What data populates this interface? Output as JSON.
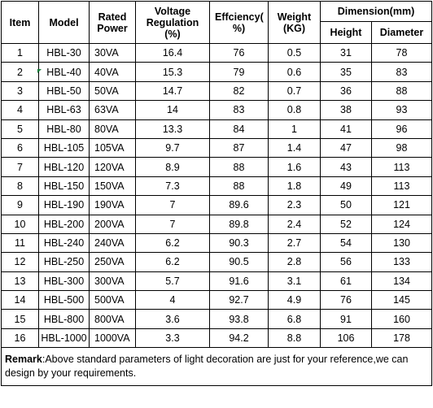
{
  "headers": {
    "item": "Item",
    "model": "Model",
    "rated_power": "Rated Power",
    "voltage_regulation": "Voltage Regulation (%)",
    "efficiency": "Effciency( %)",
    "weight": "Weight (KG)",
    "dimension": "Dimension(mm)",
    "height": "Height",
    "diameter": "Diameter"
  },
  "rows": [
    {
      "item": "1",
      "model": "HBL-30",
      "power": "30VA",
      "vreg": "16.4",
      "eff": "76",
      "weight": "0.5",
      "height": "31",
      "diameter": "78"
    },
    {
      "item": "2",
      "model": "HBL-40",
      "power": "40VA",
      "vreg": "15.3",
      "eff": "79",
      "weight": "0.6",
      "height": "35",
      "diameter": "83"
    },
    {
      "item": "3",
      "model": "HBL-50",
      "power": "50VA",
      "vreg": "14.7",
      "eff": "82",
      "weight": "0.7",
      "height": "36",
      "diameter": "88"
    },
    {
      "item": "4",
      "model": "HBL-63",
      "power": "63VA",
      "vreg": "14",
      "eff": "83",
      "weight": "0.8",
      "height": "38",
      "diameter": "93"
    },
    {
      "item": "5",
      "model": "HBL-80",
      "power": "80VA",
      "vreg": "13.3",
      "eff": "84",
      "weight": "1",
      "height": "41",
      "diameter": "96"
    },
    {
      "item": "6",
      "model": "HBL-105",
      "power": "105VA",
      "vreg": "9.7",
      "eff": "87",
      "weight": "1.4",
      "height": "47",
      "diameter": "98"
    },
    {
      "item": "7",
      "model": "HBL-120",
      "power": "120VA",
      "vreg": "8.9",
      "eff": "88",
      "weight": "1.6",
      "height": "43",
      "diameter": "113"
    },
    {
      "item": "8",
      "model": "HBL-150",
      "power": "150VA",
      "vreg": "7.3",
      "eff": "88",
      "weight": "1.8",
      "height": "49",
      "diameter": "113"
    },
    {
      "item": "9",
      "model": "HBL-190",
      "power": "190VA",
      "vreg": "7",
      "eff": "89.6",
      "weight": "2.3",
      "height": "50",
      "diameter": "121"
    },
    {
      "item": "10",
      "model": "HBL-200",
      "power": "200VA",
      "vreg": "7",
      "eff": "89.8",
      "weight": "2.4",
      "height": "52",
      "diameter": "124"
    },
    {
      "item": "11",
      "model": "HBL-240",
      "power": "240VA",
      "vreg": "6.2",
      "eff": "90.3",
      "weight": "2.7",
      "height": "54",
      "diameter": "130"
    },
    {
      "item": "12",
      "model": "HBL-250",
      "power": "250VA",
      "vreg": "6.2",
      "eff": "90.5",
      "weight": "2.8",
      "height": "56",
      "diameter": "133"
    },
    {
      "item": "13",
      "model": "HBL-300",
      "power": "300VA",
      "vreg": "5.7",
      "eff": "91.6",
      "weight": "3.1",
      "height": "61",
      "diameter": "134"
    },
    {
      "item": "14",
      "model": "HBL-500",
      "power": "500VA",
      "vreg": "4",
      "eff": "92.7",
      "weight": "4.9",
      "height": "76",
      "diameter": "145"
    },
    {
      "item": "15",
      "model": "HBL-800",
      "power": "800VA",
      "vreg": "3.6",
      "eff": "93.8",
      "weight": "6.8",
      "height": "91",
      "diameter": "160"
    },
    {
      "item": "16",
      "model": "HBL-1000",
      "power": "1000VA",
      "vreg": "3.3",
      "eff": "94.2",
      "weight": "8.8",
      "height": "106",
      "diameter": "178"
    }
  ],
  "remark": {
    "label": "Remark",
    "text": ":Above standard parameters of light decoration are just for your reference,we can design by your requirements."
  },
  "colors": {
    "border": "#000000",
    "background": "#ffffff",
    "cell_marker": "#1a7f3c"
  }
}
